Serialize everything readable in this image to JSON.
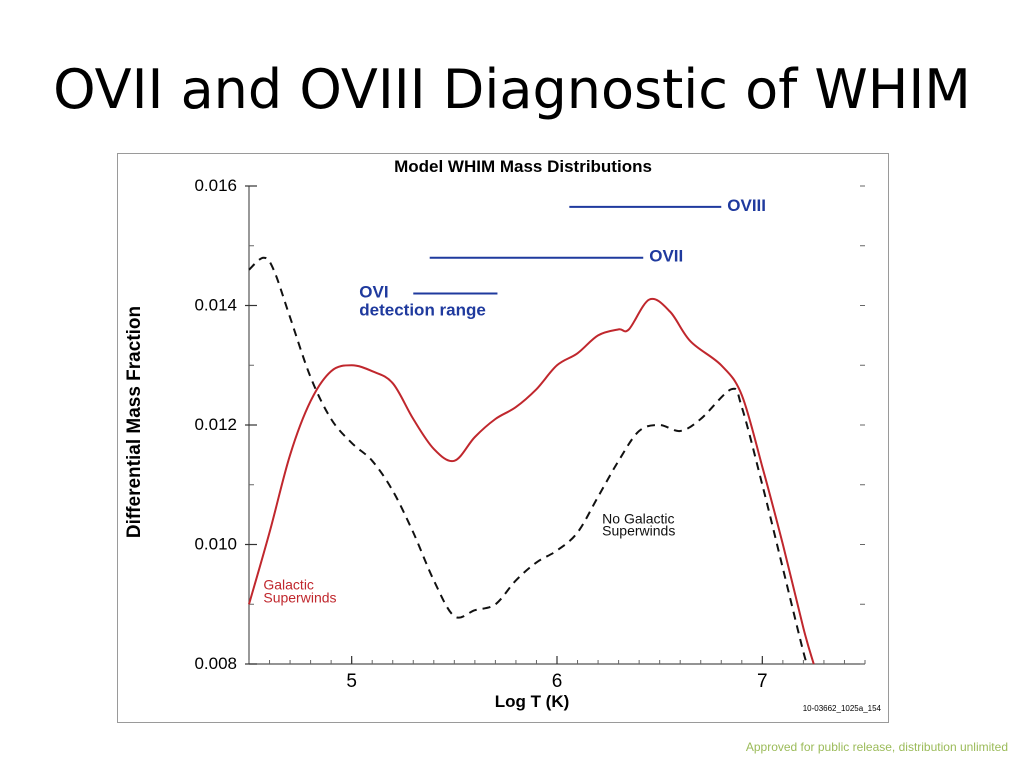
{
  "slide": {
    "title": "OVII and OVIII Diagnostic of WHIM",
    "footer": "Approved for public release, distribution unlimited"
  },
  "chart_data": {
    "type": "line",
    "title": "Model WHIM Mass Distributions",
    "xlabel": "Log T (K)",
    "ylabel": "Differential Mass Fraction",
    "xlim": [
      4.5,
      7.5
    ],
    "ylim": [
      0.008,
      0.016
    ],
    "x_ticks": [
      5,
      6,
      7
    ],
    "x_tick_labels": [
      "5",
      "6",
      "7"
    ],
    "y_ticks": [
      0.008,
      0.01,
      0.012,
      0.014,
      0.016
    ],
    "y_tick_labels": [
      "0.008",
      "0.010",
      "0.012",
      "0.014",
      "0.016"
    ],
    "figure_id": "10-03662_1025a_154",
    "series": [
      {
        "name": "Galactic Superwinds",
        "label_lines": [
          "Galactic",
          "Superwinds"
        ],
        "color": "#c0272d",
        "style": "solid",
        "points": [
          [
            4.5,
            0.009
          ],
          [
            4.6,
            0.0102
          ],
          [
            4.7,
            0.0115
          ],
          [
            4.8,
            0.0124
          ],
          [
            4.9,
            0.0129
          ],
          [
            5.0,
            0.013
          ],
          [
            5.1,
            0.0129
          ],
          [
            5.2,
            0.0127
          ],
          [
            5.3,
            0.0121
          ],
          [
            5.4,
            0.0116
          ],
          [
            5.5,
            0.0114
          ],
          [
            5.6,
            0.0118
          ],
          [
            5.7,
            0.0121
          ],
          [
            5.8,
            0.0123
          ],
          [
            5.9,
            0.0126
          ],
          [
            6.0,
            0.013
          ],
          [
            6.1,
            0.0132
          ],
          [
            6.2,
            0.0135
          ],
          [
            6.3,
            0.0136
          ],
          [
            6.35,
            0.0136
          ],
          [
            6.45,
            0.0141
          ],
          [
            6.55,
            0.0139
          ],
          [
            6.65,
            0.0134
          ],
          [
            6.8,
            0.013
          ],
          [
            6.9,
            0.0125
          ],
          [
            7.0,
            0.0113
          ],
          [
            7.1,
            0.01
          ],
          [
            7.2,
            0.0086
          ],
          [
            7.25,
            0.008
          ]
        ]
      },
      {
        "name": "No Galactic Superwinds",
        "label_lines": [
          "No Galactic",
          "Superwinds"
        ],
        "color": "#111111",
        "style": "dashed",
        "points": [
          [
            4.5,
            0.0146
          ],
          [
            4.57,
            0.0148
          ],
          [
            4.62,
            0.0146
          ],
          [
            4.7,
            0.0138
          ],
          [
            4.8,
            0.0128
          ],
          [
            4.9,
            0.0121
          ],
          [
            5.0,
            0.0117
          ],
          [
            5.1,
            0.0114
          ],
          [
            5.2,
            0.0109
          ],
          [
            5.3,
            0.0102
          ],
          [
            5.4,
            0.0094
          ],
          [
            5.5,
            0.0088
          ],
          [
            5.6,
            0.0089
          ],
          [
            5.7,
            0.009
          ],
          [
            5.8,
            0.0094
          ],
          [
            5.9,
            0.0097
          ],
          [
            6.0,
            0.0099
          ],
          [
            6.1,
            0.0102
          ],
          [
            6.2,
            0.0108
          ],
          [
            6.3,
            0.0114
          ],
          [
            6.4,
            0.0119
          ],
          [
            6.5,
            0.012
          ],
          [
            6.6,
            0.0119
          ],
          [
            6.7,
            0.0121
          ],
          [
            6.85,
            0.0126
          ],
          [
            6.9,
            0.0123
          ],
          [
            7.0,
            0.011
          ],
          [
            7.1,
            0.0096
          ],
          [
            7.2,
            0.0082
          ],
          [
            7.22,
            0.008
          ]
        ]
      }
    ],
    "annotations": [
      {
        "label": "OVIII",
        "x_range": [
          6.06,
          6.8
        ],
        "y": 0.01565,
        "color": "#1f3a9e"
      },
      {
        "label": "OVII",
        "x_range": [
          5.38,
          6.42
        ],
        "y": 0.0148,
        "color": "#1f3a9e"
      },
      {
        "label": "OVI",
        "label2": "detection range",
        "x_range": [
          5.3,
          5.71
        ],
        "y": 0.0142,
        "color": "#1f3a9e"
      }
    ]
  }
}
